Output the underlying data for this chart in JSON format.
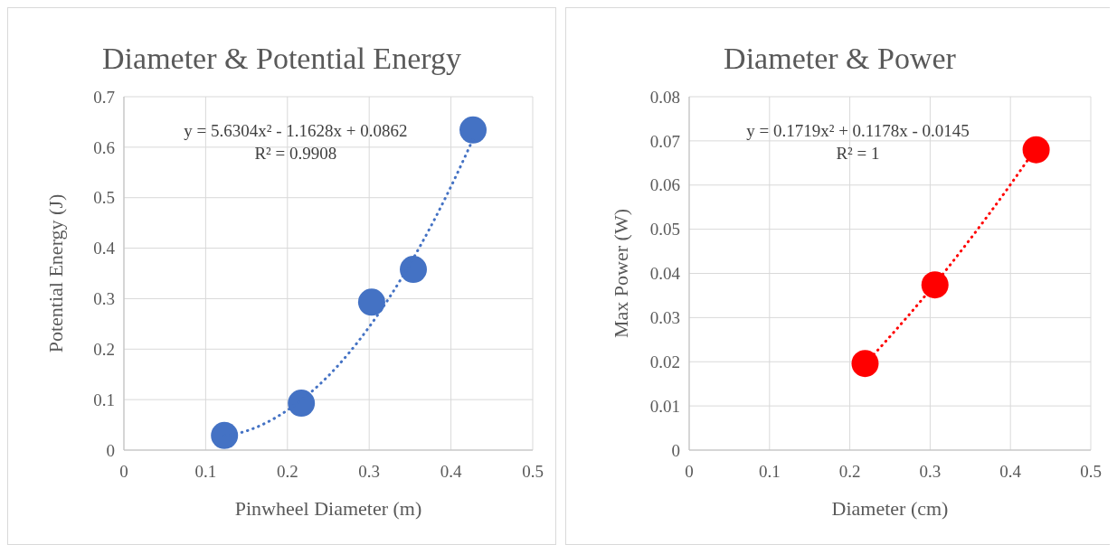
{
  "chart_data": [
    {
      "type": "scatter",
      "title": "Diameter & Potential Energy",
      "xlabel": "Pinwheel Diameter (m)",
      "ylabel": "Potential Energy (J)",
      "xlim": [
        0,
        0.5
      ],
      "xticks": [
        0,
        0.1,
        0.2,
        0.3,
        0.4,
        0.5
      ],
      "ylim": [
        0,
        0.7
      ],
      "yticks": [
        0,
        0.1,
        0.2,
        0.3,
        0.4,
        0.5,
        0.6,
        0.7
      ],
      "grid": true,
      "annotations": [
        "y = 5.6304x² - 1.1628x + 0.0862",
        "R² = 0.9908"
      ],
      "series": [
        {
          "marker": "circle",
          "color": "#4472c4",
          "x": [
            0.123,
            0.217,
            0.303,
            0.354,
            0.427
          ],
          "values": [
            0.029,
            0.093,
            0.293,
            0.358,
            0.634
          ]
        },
        {
          "type": "line",
          "marker": "none",
          "line_style": "dotted",
          "color": "#4472c4",
          "x": [
            0.123,
            0.15,
            0.2,
            0.25,
            0.3,
            0.35,
            0.4,
            0.427
          ],
          "values": [
            0.028,
            0.038,
            0.079,
            0.147,
            0.244,
            0.369,
            0.522,
            0.616
          ]
        }
      ]
    },
    {
      "type": "scatter",
      "title": "Diameter & Power",
      "xlabel": "Diameter (cm)",
      "ylabel": "Max Power (W)",
      "xlim": [
        0,
        0.5
      ],
      "xticks": [
        0,
        0.1,
        0.2,
        0.3,
        0.4,
        0.5
      ],
      "ylim": [
        0,
        0.08
      ],
      "yticks": [
        0,
        0.01,
        0.02,
        0.03,
        0.04,
        0.05,
        0.06,
        0.07,
        0.08
      ],
      "grid": true,
      "annotations": [
        "y = 0.1719x² + 0.1178x - 0.0145",
        "R² = 1"
      ],
      "series": [
        {
          "marker": "circle",
          "color": "#ff0000",
          "x": [
            0.219,
            0.306,
            0.432
          ],
          "values": [
            0.0196,
            0.0374,
            0.068
          ]
        },
        {
          "type": "line",
          "marker": "none",
          "line_style": "dotted",
          "color": "#ff0000",
          "x": [
            0.22,
            0.25,
            0.3,
            0.35,
            0.4,
            0.43
          ],
          "values": [
            0.0197,
            0.0257,
            0.0363,
            0.0478,
            0.0601,
            0.0679
          ]
        }
      ]
    }
  ]
}
